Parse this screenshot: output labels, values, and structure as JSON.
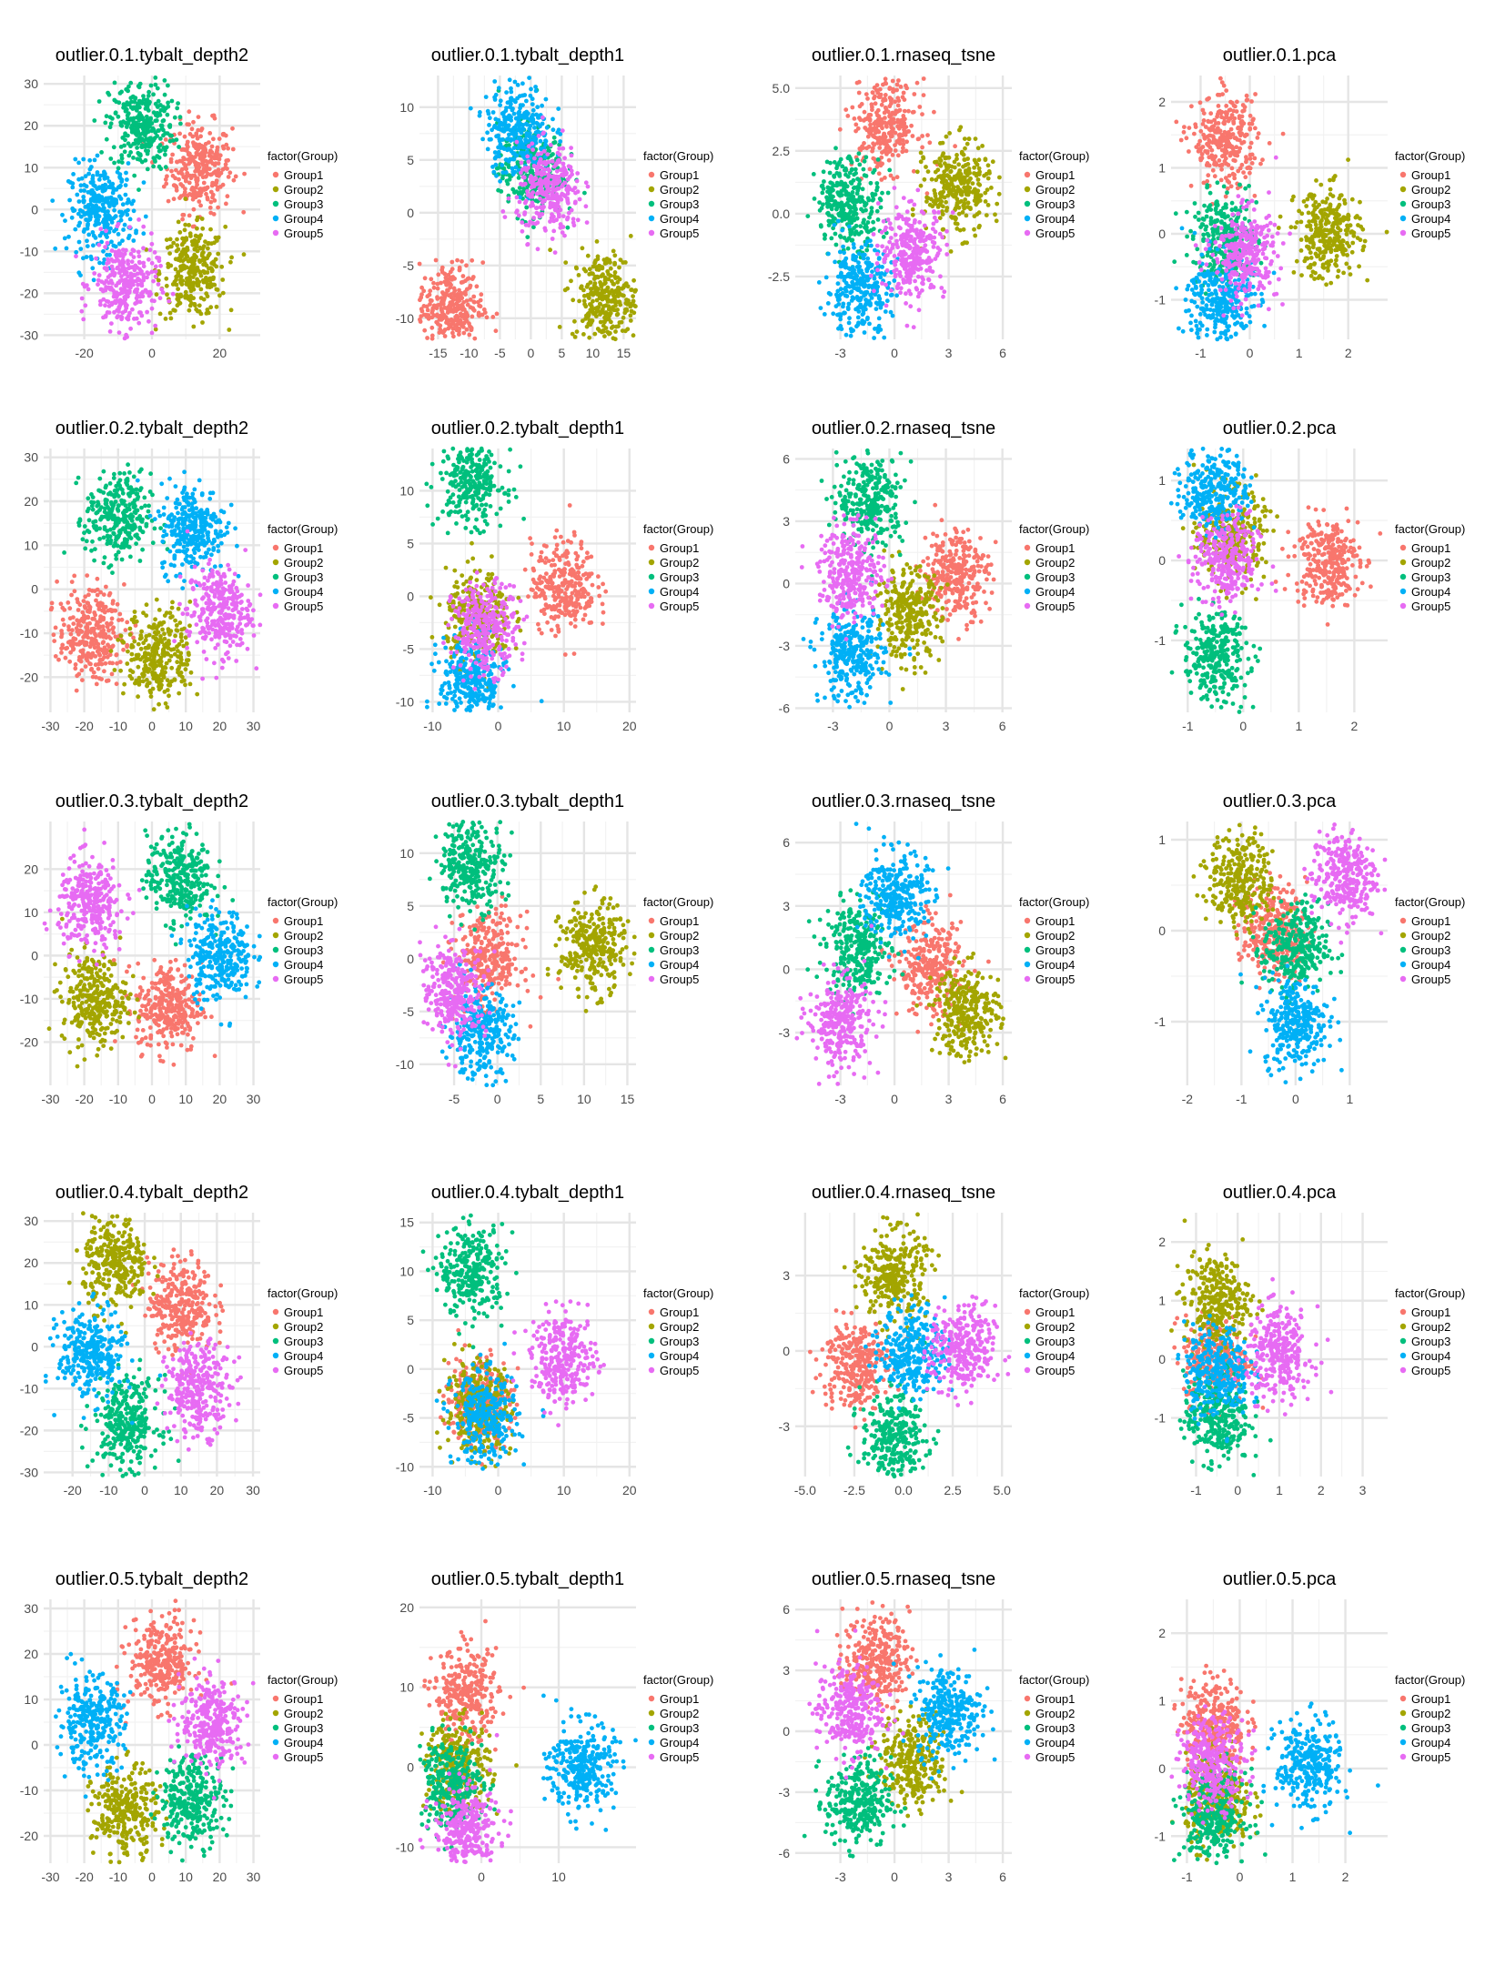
{
  "legend": {
    "title": "factor(Group)",
    "groups": [
      "Group1",
      "Group2",
      "Group3",
      "Group4",
      "Group5"
    ],
    "colors": [
      "#F8766D",
      "#A3A500",
      "#00BF7D",
      "#00B0F6",
      "#E76BF3"
    ]
  },
  "chart_data": [
    {
      "title": "outlier.0.1.tybalt_depth2",
      "type": "scatter",
      "xlim": [
        -32,
        32
      ],
      "ylim": [
        -31,
        32
      ],
      "xticks": [
        -20,
        0,
        20
      ],
      "yticks": [
        -30,
        -20,
        -10,
        0,
        10,
        20,
        30
      ],
      "legend_position": "right",
      "grid": true,
      "clusters": [
        {
          "group": "Group1",
          "x": 14,
          "y": 10
        },
        {
          "group": "Group2",
          "x": 12,
          "y": -15
        },
        {
          "group": "Group3",
          "x": -3,
          "y": 20
        },
        {
          "group": "Group4",
          "x": -15,
          "y": 0
        },
        {
          "group": "Group5",
          "x": -8,
          "y": -18
        }
      ]
    },
    {
      "title": "outlier.0.1.tybalt_depth1",
      "type": "scatter",
      "xlim": [
        -18,
        17
      ],
      "ylim": [
        -12,
        13
      ],
      "xticks": [
        -15,
        -10,
        -5,
        0,
        5,
        10,
        15
      ],
      "yticks": [
        -10,
        -5,
        0,
        5,
        10
      ],
      "legend_position": "right",
      "grid": true,
      "clusters": [
        {
          "group": "Group1",
          "x": -13,
          "y": -9
        },
        {
          "group": "Group2",
          "x": 12,
          "y": -8
        },
        {
          "group": "Group3",
          "x": 0,
          "y": 4
        },
        {
          "group": "Group4",
          "x": -2,
          "y": 8
        },
        {
          "group": "Group5",
          "x": 3,
          "y": 2
        }
      ]
    },
    {
      "title": "outlier.0.1.rnaseq_tsne",
      "type": "scatter",
      "xlim": [
        -5.5,
        6.5
      ],
      "ylim": [
        -5,
        5.5
      ],
      "xticks": [
        -3,
        0,
        3,
        6
      ],
      "yticks": [
        -2.5,
        0.0,
        2.5,
        5.0
      ],
      "legend_position": "right",
      "grid": true,
      "clusters": [
        {
          "group": "Group1",
          "x": -0.5,
          "y": 3.5
        },
        {
          "group": "Group2",
          "x": 3.5,
          "y": 1
        },
        {
          "group": "Group3",
          "x": -2.5,
          "y": 0.5
        },
        {
          "group": "Group4",
          "x": -2,
          "y": -3
        },
        {
          "group": "Group5",
          "x": 1,
          "y": -1.5
        }
      ]
    },
    {
      "title": "outlier.0.1.pca",
      "type": "scatter",
      "xlim": [
        -1.6,
        2.8
      ],
      "ylim": [
        -1.6,
        2.4
      ],
      "xticks": [
        -1,
        0,
        1,
        2
      ],
      "yticks": [
        -1,
        0,
        1,
        2
      ],
      "legend_position": "right",
      "grid": true,
      "clusters": [
        {
          "group": "Group1",
          "x": -0.5,
          "y": 1.4
        },
        {
          "group": "Group2",
          "x": 1.6,
          "y": 0
        },
        {
          "group": "Group3",
          "x": -0.5,
          "y": -0.1
        },
        {
          "group": "Group4",
          "x": -0.6,
          "y": -1
        },
        {
          "group": "Group5",
          "x": -0.1,
          "y": -0.3
        }
      ]
    },
    {
      "title": "outlier.0.2.tybalt_depth2",
      "type": "scatter",
      "xlim": [
        -32,
        32
      ],
      "ylim": [
        -28,
        32
      ],
      "xticks": [
        -30,
        -20,
        -10,
        0,
        10,
        20,
        30
      ],
      "yticks": [
        -20,
        -10,
        0,
        10,
        20,
        30
      ],
      "legend_position": "right",
      "grid": true,
      "clusters": [
        {
          "group": "Group1",
          "x": -18,
          "y": -10
        },
        {
          "group": "Group2",
          "x": 2,
          "y": -15
        },
        {
          "group": "Group3",
          "x": -10,
          "y": 16
        },
        {
          "group": "Group4",
          "x": 12,
          "y": 14
        },
        {
          "group": "Group5",
          "x": 20,
          "y": -5
        }
      ]
    },
    {
      "title": "outlier.0.2.tybalt_depth1",
      "type": "scatter",
      "xlim": [
        -12,
        21
      ],
      "ylim": [
        -11,
        14
      ],
      "xticks": [
        -10,
        0,
        10,
        20
      ],
      "yticks": [
        -10,
        -5,
        0,
        5,
        10
      ],
      "legend_position": "right",
      "grid": true,
      "clusters": [
        {
          "group": "Group1",
          "x": 10,
          "y": 1
        },
        {
          "group": "Group2",
          "x": -3,
          "y": -2
        },
        {
          "group": "Group3",
          "x": -4,
          "y": 11
        },
        {
          "group": "Group4",
          "x": -4,
          "y": -8
        },
        {
          "group": "Group5",
          "x": -2,
          "y": -3
        }
      ]
    },
    {
      "title": "outlier.0.2.rnaseq_tsne",
      "type": "scatter",
      "xlim": [
        -5,
        6.5
      ],
      "ylim": [
        -6.2,
        6.5
      ],
      "xticks": [
        -3,
        0,
        3,
        6
      ],
      "yticks": [
        -6,
        -3,
        0,
        3,
        6
      ],
      "legend_position": "right",
      "grid": true,
      "clusters": [
        {
          "group": "Group1",
          "x": 3.5,
          "y": 0.5
        },
        {
          "group": "Group2",
          "x": 1,
          "y": -1.5
        },
        {
          "group": "Group3",
          "x": -1,
          "y": 4
        },
        {
          "group": "Group4",
          "x": -2,
          "y": -3.5
        },
        {
          "group": "Group5",
          "x": -2,
          "y": 0.5
        }
      ]
    },
    {
      "title": "outlier.0.2.pca",
      "type": "scatter",
      "xlim": [
        -1.3,
        2.6
      ],
      "ylim": [
        -1.9,
        1.4
      ],
      "xticks": [
        -1,
        0,
        1,
        2
      ],
      "yticks": [
        -1,
        0,
        1
      ],
      "legend_position": "right",
      "grid": true,
      "clusters": [
        {
          "group": "Group1",
          "x": 1.5,
          "y": 0
        },
        {
          "group": "Group2",
          "x": -0.2,
          "y": 0.3
        },
        {
          "group": "Group3",
          "x": -0.5,
          "y": -1.2
        },
        {
          "group": "Group4",
          "x": -0.5,
          "y": 0.9
        },
        {
          "group": "Group5",
          "x": -0.3,
          "y": 0
        }
      ]
    },
    {
      "title": "outlier.0.3.tybalt_depth2",
      "type": "scatter",
      "xlim": [
        -32,
        32
      ],
      "ylim": [
        -30,
        31
      ],
      "xticks": [
        -30,
        -20,
        -10,
        0,
        10,
        20,
        30
      ],
      "yticks": [
        -20,
        -10,
        0,
        10,
        20
      ],
      "legend_position": "right",
      "grid": true,
      "clusters": [
        {
          "group": "Group1",
          "x": 5,
          "y": -12
        },
        {
          "group": "Group2",
          "x": -17,
          "y": -10
        },
        {
          "group": "Group3",
          "x": 8,
          "y": 18
        },
        {
          "group": "Group4",
          "x": 20,
          "y": 0
        },
        {
          "group": "Group5",
          "x": -18,
          "y": 12
        }
      ]
    },
    {
      "title": "outlier.0.3.tybalt_depth1",
      "type": "scatter",
      "xlim": [
        -9,
        16
      ],
      "ylim": [
        -12,
        13
      ],
      "xticks": [
        -5,
        0,
        5,
        10,
        15
      ],
      "yticks": [
        -10,
        -5,
        0,
        5,
        10
      ],
      "legend_position": "right",
      "grid": true,
      "clusters": [
        {
          "group": "Group1",
          "x": -1,
          "y": 0
        },
        {
          "group": "Group2",
          "x": 11,
          "y": 1
        },
        {
          "group": "Group3",
          "x": -3,
          "y": 9
        },
        {
          "group": "Group4",
          "x": -2,
          "y": -7
        },
        {
          "group": "Group5",
          "x": -5,
          "y": -3
        }
      ]
    },
    {
      "title": "outlier.0.3.rnaseq_tsne",
      "type": "scatter",
      "xlim": [
        -5.5,
        6.5
      ],
      "ylim": [
        -5.5,
        7
      ],
      "xticks": [
        -3,
        0,
        3,
        6
      ],
      "yticks": [
        -3,
        0,
        3,
        6
      ],
      "legend_position": "right",
      "grid": true,
      "clusters": [
        {
          "group": "Group1",
          "x": 2,
          "y": 0
        },
        {
          "group": "Group2",
          "x": 4,
          "y": -2
        },
        {
          "group": "Group3",
          "x": -2,
          "y": 1
        },
        {
          "group": "Group4",
          "x": 0,
          "y": 3.5
        },
        {
          "group": "Group5",
          "x": -3,
          "y": -2.5
        }
      ]
    },
    {
      "title": "outlier.0.3.pca",
      "type": "scatter",
      "xlim": [
        -2.3,
        1.7
      ],
      "ylim": [
        -1.7,
        1.2
      ],
      "xticks": [
        -2,
        -1,
        0,
        1
      ],
      "yticks": [
        -1,
        0,
        1
      ],
      "legend_position": "right",
      "grid": true,
      "clusters": [
        {
          "group": "Group1",
          "x": -0.4,
          "y": 0
        },
        {
          "group": "Group2",
          "x": -1,
          "y": 0.55
        },
        {
          "group": "Group3",
          "x": 0,
          "y": -0.2
        },
        {
          "group": "Group4",
          "x": 0,
          "y": -1
        },
        {
          "group": "Group5",
          "x": 0.9,
          "y": 0.6
        }
      ]
    },
    {
      "title": "outlier.0.4.tybalt_depth2",
      "type": "scatter",
      "xlim": [
        -28,
        32
      ],
      "ylim": [
        -31,
        32
      ],
      "xticks": [
        -20,
        -10,
        0,
        10,
        20,
        30
      ],
      "yticks": [
        -30,
        -20,
        -10,
        0,
        10,
        20,
        30
      ],
      "legend_position": "right",
      "grid": true,
      "clusters": [
        {
          "group": "Group1",
          "x": 10,
          "y": 10
        },
        {
          "group": "Group2",
          "x": -8,
          "y": 20
        },
        {
          "group": "Group3",
          "x": -5,
          "y": -18
        },
        {
          "group": "Group4",
          "x": -15,
          "y": -2
        },
        {
          "group": "Group5",
          "x": 15,
          "y": -10
        }
      ]
    },
    {
      "title": "outlier.0.4.tybalt_depth1",
      "type": "scatter",
      "xlim": [
        -12,
        21
      ],
      "ylim": [
        -11,
        16
      ],
      "xticks": [
        -10,
        0,
        10,
        20
      ],
      "yticks": [
        -10,
        -5,
        0,
        5,
        10,
        15
      ],
      "legend_position": "right",
      "grid": true,
      "clusters": [
        {
          "group": "Group1",
          "x": -3,
          "y": -3
        },
        {
          "group": "Group2",
          "x": -3,
          "y": -4
        },
        {
          "group": "Group3",
          "x": -4,
          "y": 10
        },
        {
          "group": "Group4",
          "x": -2,
          "y": -5
        },
        {
          "group": "Group5",
          "x": 10,
          "y": 1
        }
      ]
    },
    {
      "title": "outlier.0.4.rnaseq_tsne",
      "type": "scatter",
      "xlim": [
        -5.5,
        5.5
      ],
      "ylim": [
        -5,
        5.5
      ],
      "xticks": [
        -5.0,
        -2.5,
        0.0,
        2.5,
        5.0
      ],
      "yticks": [
        -3,
        0,
        3
      ],
      "legend_position": "right",
      "grid": true,
      "clusters": [
        {
          "group": "Group1",
          "x": -2.5,
          "y": -0.5
        },
        {
          "group": "Group2",
          "x": -0.5,
          "y": 3
        },
        {
          "group": "Group3",
          "x": -0.5,
          "y": -3.5
        },
        {
          "group": "Group4",
          "x": 0.5,
          "y": 0
        },
        {
          "group": "Group5",
          "x": 3,
          "y": 0
        }
      ]
    },
    {
      "title": "outlier.0.4.pca",
      "type": "scatter",
      "xlim": [
        -1.6,
        3.6
      ],
      "ylim": [
        -2,
        2.5
      ],
      "xticks": [
        -1,
        0,
        1,
        2,
        3
      ],
      "yticks": [
        -1,
        0,
        1,
        2
      ],
      "legend_position": "right",
      "grid": true,
      "clusters": [
        {
          "group": "Group1",
          "x": -0.5,
          "y": 0
        },
        {
          "group": "Group2",
          "x": -0.5,
          "y": 1
        },
        {
          "group": "Group3",
          "x": -0.5,
          "y": -1
        },
        {
          "group": "Group4",
          "x": -0.5,
          "y": -0.2
        },
        {
          "group": "Group5",
          "x": 1,
          "y": 0.1
        }
      ]
    },
    {
      "title": "outlier.0.5.tybalt_depth2",
      "type": "scatter",
      "xlim": [
        -32,
        32
      ],
      "ylim": [
        -26,
        32
      ],
      "xticks": [
        -30,
        -20,
        -10,
        0,
        10,
        20,
        30
      ],
      "yticks": [
        -20,
        -10,
        0,
        10,
        20,
        30
      ],
      "legend_position": "right",
      "grid": true,
      "clusters": [
        {
          "group": "Group1",
          "x": 3,
          "y": 18
        },
        {
          "group": "Group2",
          "x": -8,
          "y": -15
        },
        {
          "group": "Group3",
          "x": 12,
          "y": -12
        },
        {
          "group": "Group4",
          "x": -18,
          "y": 5
        },
        {
          "group": "Group5",
          "x": 18,
          "y": 5
        }
      ]
    },
    {
      "title": "outlier.0.5.tybalt_depth1",
      "type": "scatter",
      "xlim": [
        -8,
        20
      ],
      "ylim": [
        -12,
        21
      ],
      "xticks": [
        0,
        10
      ],
      "yticks": [
        -10,
        0,
        10,
        20
      ],
      "legend_position": "right",
      "grid": true,
      "clusters": [
        {
          "group": "Group1",
          "x": -2,
          "y": 9
        },
        {
          "group": "Group2",
          "x": -3,
          "y": 0
        },
        {
          "group": "Group3",
          "x": -4,
          "y": -2
        },
        {
          "group": "Group4",
          "x": 13,
          "y": 0
        },
        {
          "group": "Group5",
          "x": -2,
          "y": -8
        }
      ]
    },
    {
      "title": "outlier.0.5.rnaseq_tsne",
      "type": "scatter",
      "xlim": [
        -5.5,
        6.5
      ],
      "ylim": [
        -6.5,
        6.5
      ],
      "xticks": [
        -3,
        0,
        3,
        6
      ],
      "yticks": [
        -6,
        -3,
        0,
        3,
        6
      ],
      "legend_position": "right",
      "grid": true,
      "clusters": [
        {
          "group": "Group1",
          "x": -1,
          "y": 3.5
        },
        {
          "group": "Group2",
          "x": 1,
          "y": -1.5
        },
        {
          "group": "Group3",
          "x": -2,
          "y": -3.5
        },
        {
          "group": "Group4",
          "x": 3,
          "y": 1
        },
        {
          "group": "Group5",
          "x": -2.5,
          "y": 1
        }
      ]
    },
    {
      "title": "outlier.0.5.pca",
      "type": "scatter",
      "xlim": [
        -1.3,
        2.8
      ],
      "ylim": [
        -1.4,
        2.5
      ],
      "xticks": [
        -1,
        0,
        1,
        2
      ],
      "yticks": [
        -1,
        0,
        1,
        2
      ],
      "legend_position": "right",
      "grid": true,
      "clusters": [
        {
          "group": "Group1",
          "x": -0.5,
          "y": 0.7
        },
        {
          "group": "Group2",
          "x": -0.4,
          "y": -0.5
        },
        {
          "group": "Group3",
          "x": -0.5,
          "y": -0.7
        },
        {
          "group": "Group4",
          "x": 1.3,
          "y": 0.05
        },
        {
          "group": "Group5",
          "x": -0.5,
          "y": 0.1
        }
      ]
    }
  ]
}
